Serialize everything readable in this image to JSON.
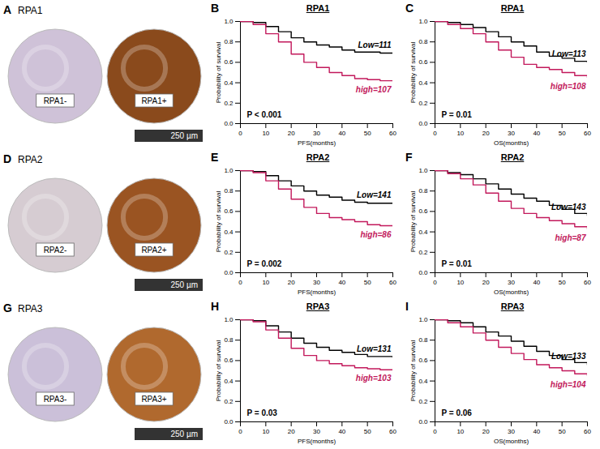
{
  "chart_data": [
    {
      "panel": "B",
      "type": "line",
      "line_style": "step",
      "title": "RPA1",
      "x_label": "PFS(months)",
      "y_label": "Probability of survival",
      "xlim": [
        0,
        60
      ],
      "ylim": [
        0,
        1
      ],
      "xticks": [
        0,
        10,
        20,
        30,
        40,
        50,
        60
      ],
      "yticks": [
        {
          "value": 0,
          "label": "0.0"
        },
        0.2,
        0.4,
        0.6,
        0.8,
        {
          "value": 1,
          "label": "1.0"
        }
      ],
      "annotations": [
        "P < 0.001"
      ],
      "x": [
        0,
        5,
        10,
        15,
        20,
        25,
        30,
        35,
        40,
        45,
        50,
        55,
        60
      ],
      "series": [
        {
          "name": "Low=111",
          "color": "#000000",
          "values": [
            1.0,
            0.99,
            0.95,
            0.9,
            0.84,
            0.8,
            0.77,
            0.75,
            0.72,
            0.7,
            0.7,
            0.69,
            0.69
          ]
        },
        {
          "name": "high=107",
          "color": "#c2185b",
          "values": [
            1.0,
            0.97,
            0.88,
            0.8,
            0.68,
            0.6,
            0.55,
            0.5,
            0.47,
            0.44,
            0.43,
            0.42,
            0.42
          ]
        }
      ]
    },
    {
      "panel": "C",
      "type": "line",
      "line_style": "step",
      "title": "RPA1",
      "x_label": "OS(months)",
      "y_label": "Probability of survival",
      "xlim": [
        0,
        60
      ],
      "ylim": [
        0,
        1
      ],
      "xticks": [
        0,
        10,
        20,
        30,
        40,
        50,
        60
      ],
      "yticks": [
        {
          "value": 0,
          "label": "0.0"
        },
        0.2,
        0.4,
        0.6,
        0.8,
        {
          "value": 1,
          "label": "1.0"
        }
      ],
      "annotations": [
        "P = 0.01"
      ],
      "x": [
        0,
        5,
        10,
        15,
        20,
        25,
        30,
        35,
        40,
        45,
        50,
        55,
        60
      ],
      "series": [
        {
          "name": "Low=113",
          "color": "#000000",
          "values": [
            1.0,
            0.99,
            0.97,
            0.94,
            0.9,
            0.85,
            0.8,
            0.76,
            0.7,
            0.66,
            0.64,
            0.61,
            0.6
          ]
        },
        {
          "name": "high=108",
          "color": "#c2185b",
          "values": [
            1.0,
            0.97,
            0.93,
            0.88,
            0.8,
            0.72,
            0.65,
            0.58,
            0.55,
            0.53,
            0.5,
            0.47,
            0.45
          ]
        }
      ]
    },
    {
      "panel": "E",
      "type": "line",
      "line_style": "step",
      "title": "RPA2",
      "x_label": "PFS(months)",
      "y_label": "Probability of survival",
      "xlim": [
        0,
        60
      ],
      "ylim": [
        0,
        1
      ],
      "xticks": [
        0,
        10,
        20,
        30,
        40,
        50,
        60
      ],
      "yticks": [
        {
          "value": 0,
          "label": "0.0"
        },
        0.2,
        0.4,
        0.6,
        0.8,
        {
          "value": 1,
          "label": "1.0"
        }
      ],
      "annotations": [
        "P = 0.002"
      ],
      "x": [
        0,
        5,
        10,
        15,
        20,
        25,
        30,
        35,
        40,
        45,
        50,
        55,
        60
      ],
      "series": [
        {
          "name": "Low=141",
          "color": "#000000",
          "values": [
            1.0,
            0.99,
            0.95,
            0.9,
            0.85,
            0.8,
            0.76,
            0.74,
            0.71,
            0.69,
            0.68,
            0.68,
            0.68
          ]
        },
        {
          "name": "high=86",
          "color": "#c2185b",
          "values": [
            1.0,
            0.98,
            0.9,
            0.82,
            0.72,
            0.64,
            0.58,
            0.54,
            0.52,
            0.5,
            0.47,
            0.46,
            0.46
          ]
        }
      ]
    },
    {
      "panel": "F",
      "type": "line",
      "line_style": "step",
      "title": "RPA2",
      "x_label": "OS(months)",
      "y_label": "Probability of survival",
      "xlim": [
        0,
        60
      ],
      "ylim": [
        0,
        1
      ],
      "xticks": [
        0,
        10,
        20,
        30,
        40,
        50,
        60
      ],
      "yticks": [
        {
          "value": 0,
          "label": "0.0"
        },
        0.2,
        0.4,
        0.6,
        0.8,
        {
          "value": 1,
          "label": "1.0"
        }
      ],
      "annotations": [
        "P = 0.01"
      ],
      "x": [
        0,
        5,
        10,
        15,
        20,
        25,
        30,
        35,
        40,
        45,
        50,
        55,
        60
      ],
      "series": [
        {
          "name": "Low=143",
          "color": "#000000",
          "values": [
            1.0,
            0.98,
            0.96,
            0.92,
            0.87,
            0.82,
            0.77,
            0.73,
            0.7,
            0.66,
            0.62,
            0.58,
            0.56
          ]
        },
        {
          "name": "high=87",
          "color": "#c2185b",
          "values": [
            1.0,
            0.97,
            0.92,
            0.86,
            0.78,
            0.7,
            0.63,
            0.58,
            0.54,
            0.51,
            0.48,
            0.45,
            0.43
          ]
        }
      ]
    },
    {
      "panel": "H",
      "type": "line",
      "line_style": "step",
      "title": "RPA3",
      "x_label": "PFS(months)",
      "y_label": "Probability of survival",
      "xlim": [
        0,
        60
      ],
      "ylim": [
        0,
        1
      ],
      "xticks": [
        0,
        10,
        20,
        30,
        40,
        50,
        60
      ],
      "yticks": [
        {
          "value": 0,
          "label": "0.0"
        },
        0.2,
        0.4,
        0.6,
        0.8,
        {
          "value": 1,
          "label": "1.0"
        }
      ],
      "annotations": [
        "P = 0.03"
      ],
      "x": [
        0,
        5,
        10,
        15,
        20,
        25,
        30,
        35,
        40,
        45,
        50,
        55,
        60
      ],
      "series": [
        {
          "name": "Low=131",
          "color": "#000000",
          "values": [
            1.0,
            0.99,
            0.94,
            0.88,
            0.82,
            0.77,
            0.73,
            0.7,
            0.68,
            0.66,
            0.64,
            0.64,
            0.63
          ]
        },
        {
          "name": "high=103",
          "color": "#c2185b",
          "values": [
            1.0,
            0.98,
            0.9,
            0.82,
            0.72,
            0.65,
            0.6,
            0.57,
            0.55,
            0.53,
            0.52,
            0.51,
            0.51
          ]
        }
      ]
    },
    {
      "panel": "I",
      "type": "line",
      "line_style": "step",
      "title": "RPA3",
      "x_label": "OS(months)",
      "y_label": "Probability of survival",
      "xlim": [
        0,
        60
      ],
      "ylim": [
        0,
        1
      ],
      "xticks": [
        0,
        10,
        20,
        30,
        40,
        50,
        60
      ],
      "yticks": [
        {
          "value": 0,
          "label": "0.0"
        },
        0.2,
        0.4,
        0.6,
        0.8,
        {
          "value": 1,
          "label": "1.0"
        }
      ],
      "annotations": [
        "P = 0.06"
      ],
      "x": [
        0,
        5,
        10,
        15,
        20,
        25,
        30,
        35,
        40,
        45,
        50,
        55,
        60
      ],
      "series": [
        {
          "name": "Low=133",
          "color": "#000000",
          "values": [
            1.0,
            0.99,
            0.97,
            0.93,
            0.88,
            0.84,
            0.79,
            0.74,
            0.69,
            0.65,
            0.61,
            0.58,
            0.56
          ]
        },
        {
          "name": "high=104",
          "color": "#c2185b",
          "values": [
            1.0,
            0.97,
            0.93,
            0.87,
            0.8,
            0.73,
            0.67,
            0.61,
            0.56,
            0.53,
            0.5,
            0.47,
            0.45
          ]
        }
      ]
    }
  ],
  "image_panels": [
    {
      "panel": "A",
      "title": "RPA1",
      "scale_bar": "250 µm",
      "images": [
        {
          "label": "RPA1-",
          "color": "#cfc2d8"
        },
        {
          "label": "RPA1+",
          "color": "#8a4a1c"
        }
      ]
    },
    {
      "panel": "D",
      "title": "RPA2",
      "scale_bar": "250 µm",
      "images": [
        {
          "label": "RPA2-",
          "color": "#d6ccd2"
        },
        {
          "label": "RPA2+",
          "color": "#9a5422"
        }
      ]
    },
    {
      "panel": "G",
      "title": "RPA3",
      "scale_bar": "250 µm",
      "images": [
        {
          "label": "RPA3-",
          "color": "#cbc0d9"
        },
        {
          "label": "RPA3+",
          "color": "#b0692e"
        }
      ]
    }
  ]
}
